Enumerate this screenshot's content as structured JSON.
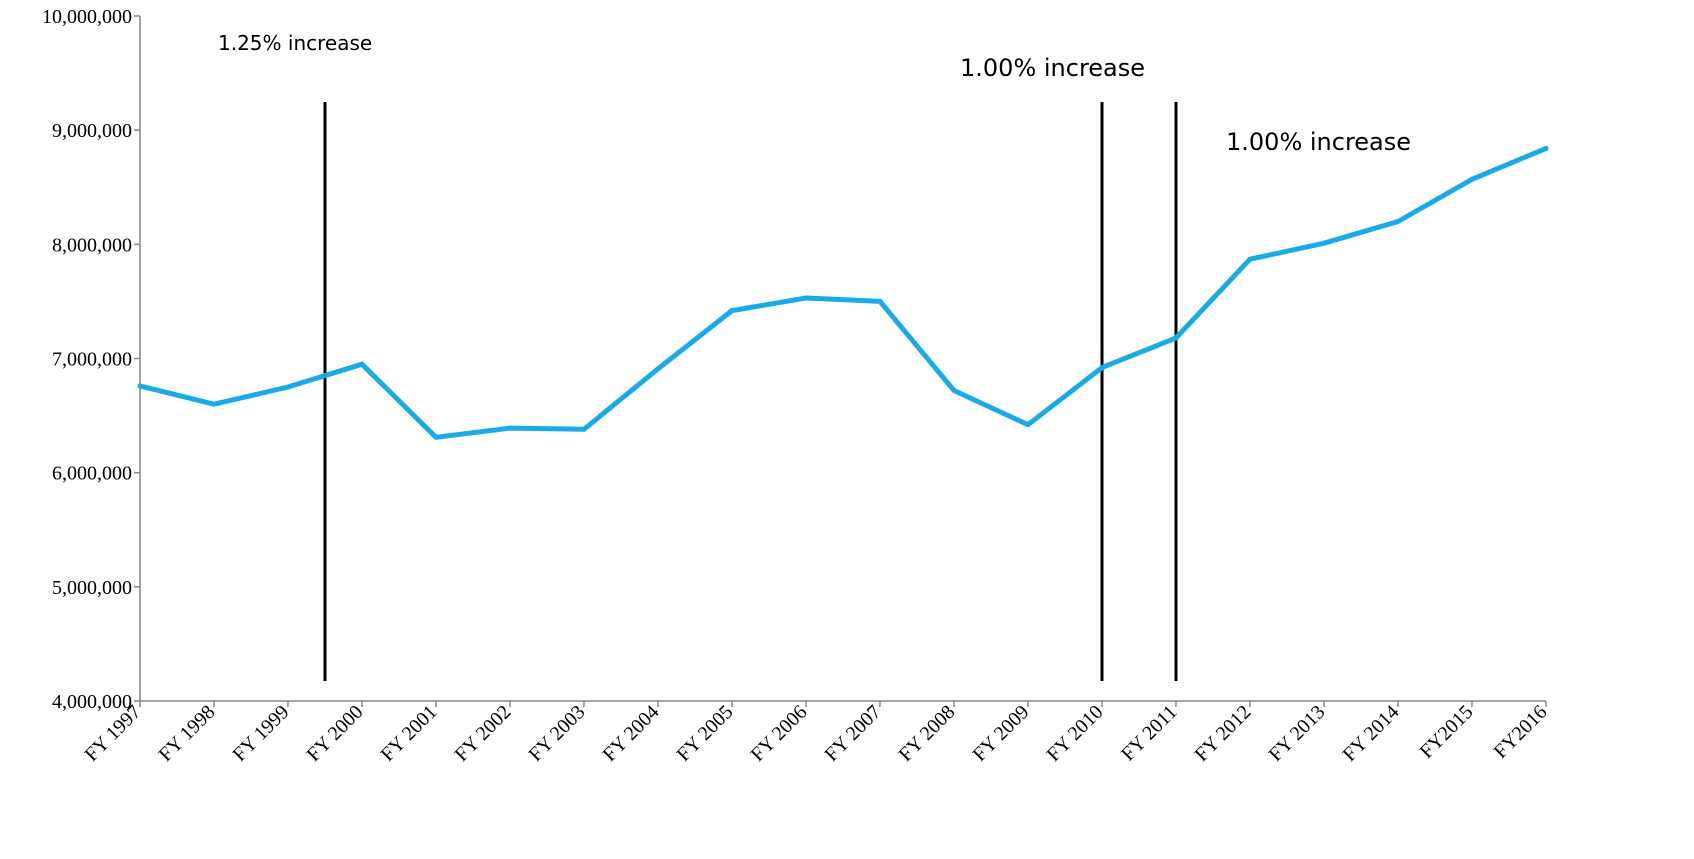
{
  "chart_data": {
    "type": "line",
    "title": "",
    "xlabel": "",
    "ylabel": "",
    "categories": [
      "FY 1997",
      "FY 1998",
      "FY 1999",
      "FY 2000",
      "FY 2001",
      "FY 2002",
      "FY 2003",
      "FY 2004",
      "FY 2005",
      "FY 2006",
      "FY 2007",
      "FY 2008",
      "FY 2009",
      "FY 2010",
      "FY 2011",
      "FY 2012",
      "FY 2013",
      "FY 2014",
      "FY2015",
      "FY2016"
    ],
    "series": [
      {
        "values": [
          6760000,
          6600000,
          6750000,
          6950000,
          6310000,
          6390000,
          6380000,
          6910000,
          7420000,
          7530000,
          7500000,
          6720000,
          6420000,
          6920000,
          7180000,
          7870000,
          8010000,
          8200000,
          8570000,
          8840000
        ],
        "color": "#1aabe6"
      }
    ],
    "ylim": [
      4000000,
      10000000
    ],
    "yticks": [
      "4,000,000",
      "5,000,000",
      "6,000,000",
      "7,000,000",
      "8,000,000",
      "9,000,000",
      "10,000,000"
    ],
    "grid": false,
    "legend": "none",
    "reference_lines": [
      {
        "x_between": [
          "FY 1999",
          "FY 2000"
        ],
        "color": "#000000"
      },
      {
        "x": "FY 2010",
        "color": "#000000"
      },
      {
        "x": "FY 2011",
        "color": "#000000"
      }
    ],
    "annotations": [
      {
        "text": "1.25% increase"
      },
      {
        "text": "1.00%  increase"
      },
      {
        "text": "1.00% increase"
      }
    ]
  }
}
